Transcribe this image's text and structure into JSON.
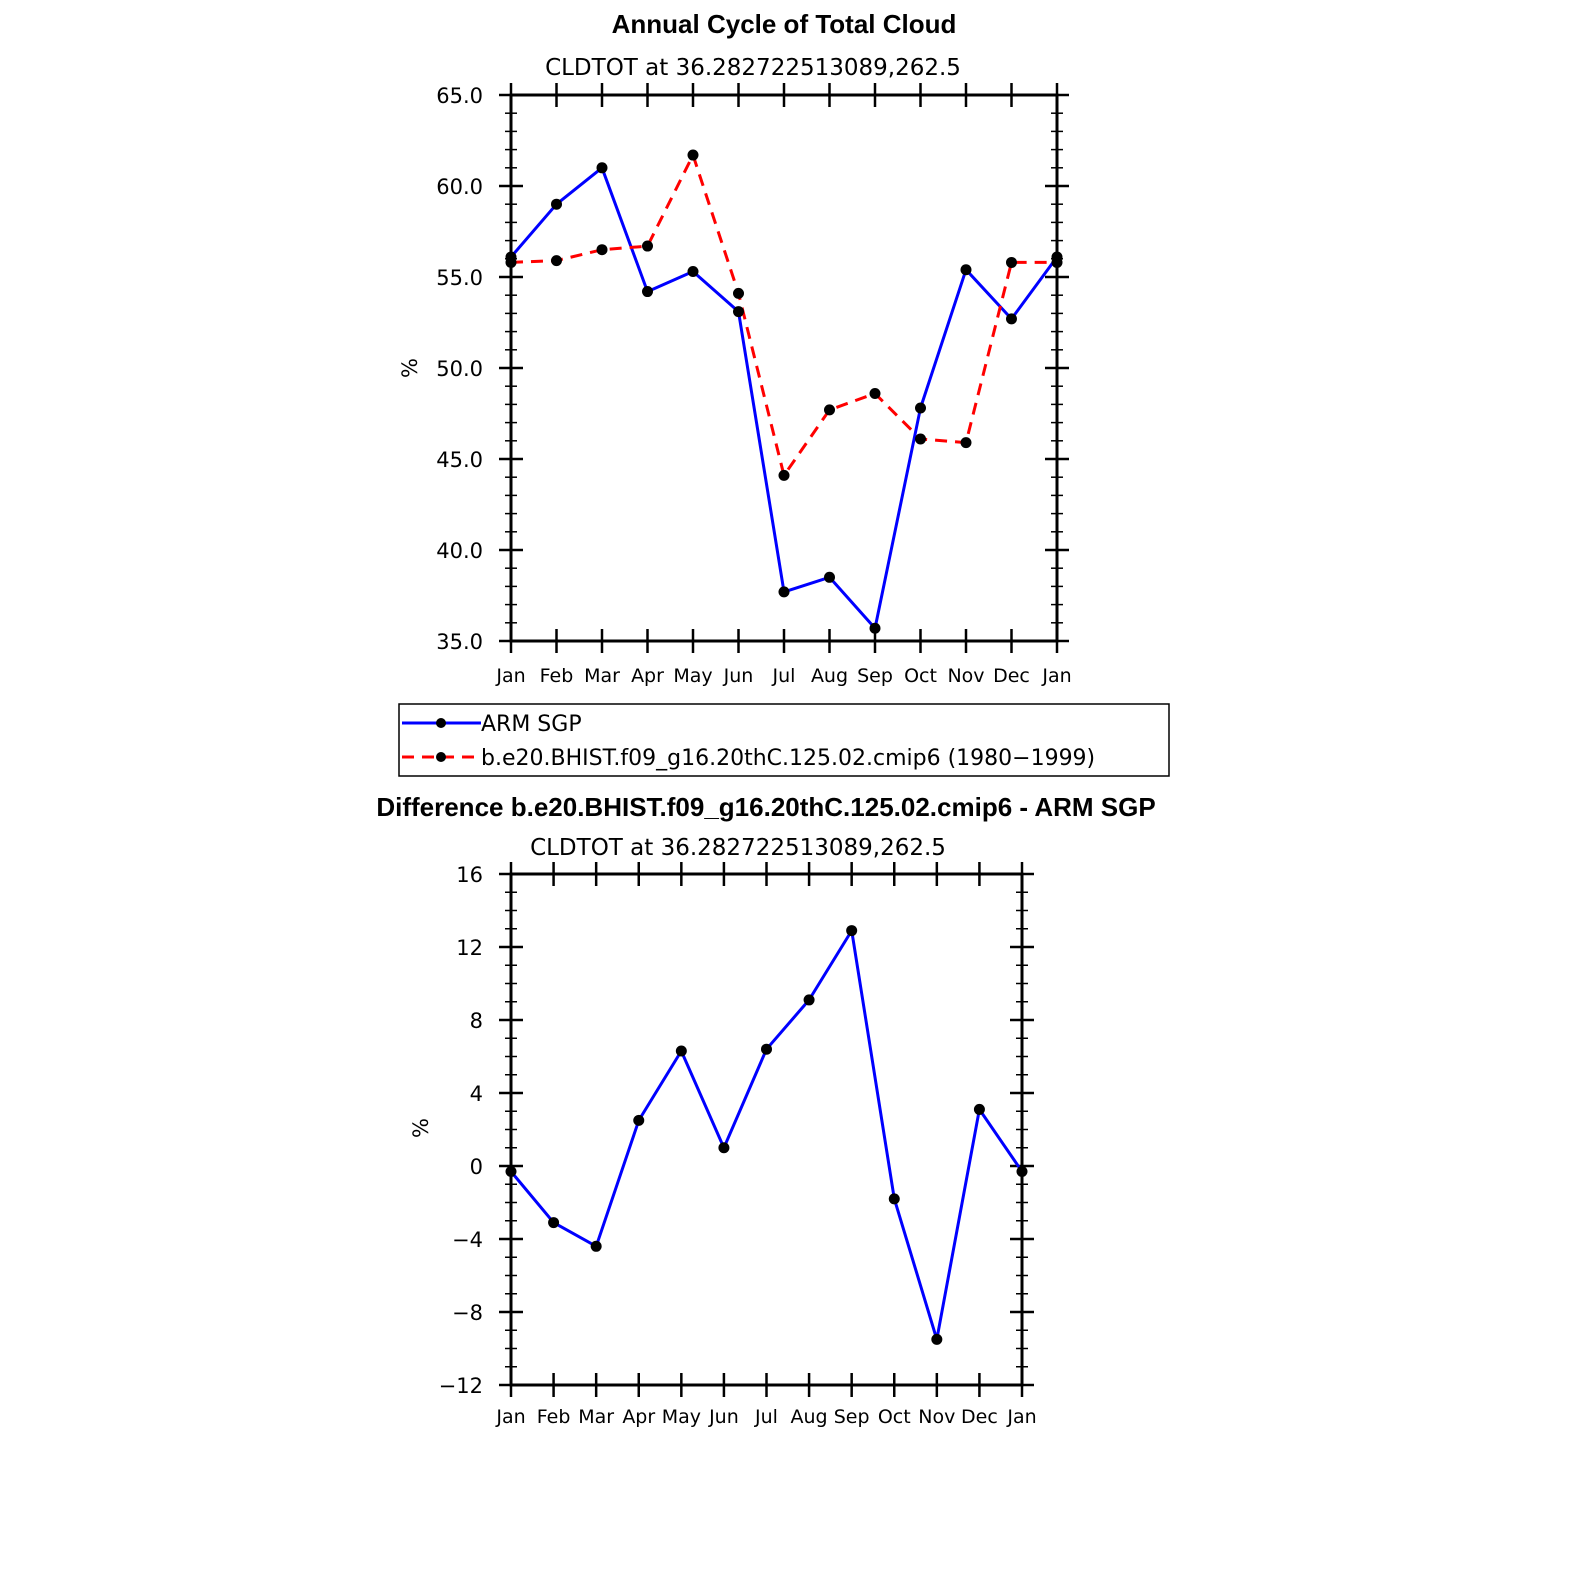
{
  "chart_data": [
    {
      "type": "line",
      "title": "Annual Cycle of Total Cloud",
      "subtitle": "CLDTOT at 36.282722513089,262.5",
      "ylabel": "%",
      "ylim": [
        35.0,
        65.0
      ],
      "yticks": [
        "35.0",
        "40.0",
        "45.0",
        "50.0",
        "55.0",
        "60.0",
        "65.0"
      ],
      "yticks_values": [
        35,
        40,
        45,
        50,
        55,
        60,
        65
      ],
      "categories": [
        "Jan",
        "Feb",
        "Mar",
        "Apr",
        "May",
        "Jun",
        "Jul",
        "Aug",
        "Sep",
        "Oct",
        "Nov",
        "Dec",
        "Jan"
      ],
      "series": [
        {
          "name": "ARM SGP",
          "color": "#0000ff",
          "dash": "solid",
          "values": [
            56.1,
            59.0,
            61.0,
            54.2,
            55.3,
            53.1,
            37.7,
            38.5,
            35.7,
            47.8,
            55.4,
            52.7,
            56.1
          ]
        },
        {
          "name": "b.e20.BHIST.f09_g16.20thC.125.02.cmip6 (1980−1999)",
          "color": "#ff0000",
          "dash": "dashed",
          "values": [
            55.8,
            55.9,
            56.5,
            56.7,
            61.7,
            54.1,
            44.1,
            47.7,
            48.6,
            46.1,
            45.9,
            55.8,
            55.8
          ]
        }
      ]
    },
    {
      "type": "line",
      "title": "Difference b.e20.BHIST.f09_g16.20thC.125.02.cmip6 - ARM SGP",
      "subtitle": "CLDTOT at 36.282722513089,262.5",
      "ylabel": "%",
      "ylim": [
        -12,
        16
      ],
      "yticks": [
        "−12",
        "−8",
        "−4",
        "0",
        "4",
        "8",
        "12",
        "16"
      ],
      "yticks_values": [
        -12,
        -8,
        -4,
        0,
        4,
        8,
        12,
        16
      ],
      "categories": [
        "Jan",
        "Feb",
        "Mar",
        "Apr",
        "May",
        "Jun",
        "Jul",
        "Aug",
        "Sep",
        "Oct",
        "Nov",
        "Dec",
        "Jan"
      ],
      "series": [
        {
          "name": "Difference",
          "color": "#0000ff",
          "dash": "solid",
          "values": [
            -0.3,
            -3.1,
            -4.4,
            2.5,
            6.3,
            1.0,
            6.4,
            9.1,
            12.9,
            -1.8,
            -9.5,
            3.1,
            -0.3
          ]
        }
      ]
    }
  ]
}
